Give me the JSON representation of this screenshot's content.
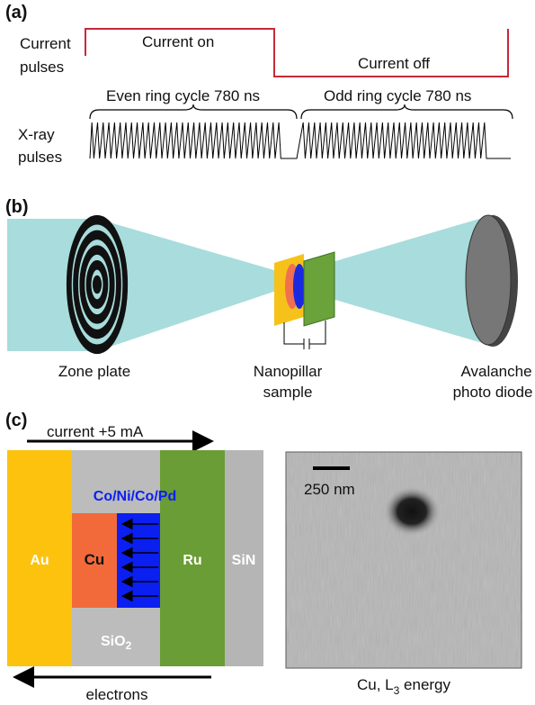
{
  "panel_a": {
    "label": "(a)",
    "current_pulses": [
      "Current",
      "pulses"
    ],
    "current_on": "Current on",
    "current_off": "Current off",
    "even_cycle": "Even ring cycle 780 ns",
    "odd_cycle": "Odd ring cycle 780 ns",
    "xray_pulses": [
      "X-ray",
      "pulses"
    ]
  },
  "panel_b": {
    "label": "(b)",
    "zone_plate": "Zone plate",
    "sample": [
      "Nanopillar",
      "sample"
    ],
    "detector": [
      "Avalanche",
      "photo diode"
    ]
  },
  "panel_c": {
    "label": "(c)",
    "current": "current  +5 mA",
    "stack": "Co/Ni/Co/Pd",
    "au": "Au",
    "cu": "Cu",
    "ru": "Ru",
    "sin": "SiN",
    "sio2": {
      "text": "SiO",
      "sub": "2"
    },
    "electrons": "electrons",
    "scale_bar": "250 nm",
    "caption": {
      "pre": "Cu, L",
      "sub": "3",
      "post": " energy"
    }
  }
}
